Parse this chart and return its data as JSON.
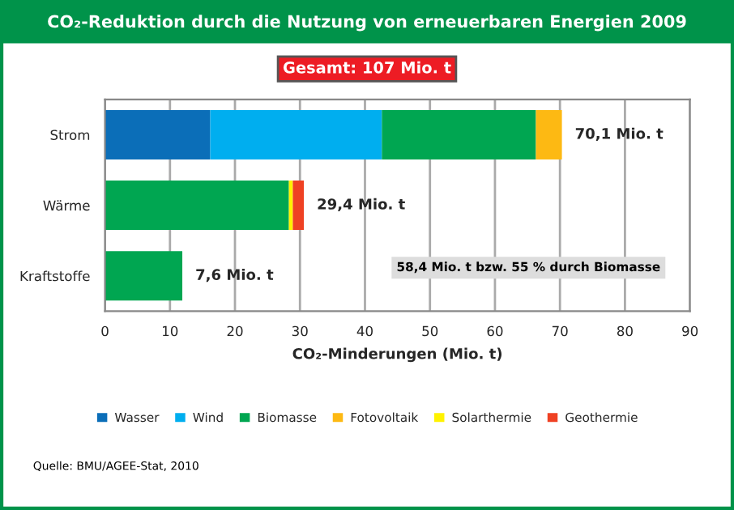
{
  "chart_data": {
    "type": "bar",
    "orientation": "horizontal",
    "stacked": true,
    "title": "CO₂-Reduktion durch die Nutzung von erneuerbaren Energien 2009",
    "xlabel": "CO₂-Minderungen (Mio. t)",
    "categories": [
      "Strom",
      "Wärme",
      "Kraftstoffe"
    ],
    "series": [
      {
        "name": "Wasser",
        "color": "#0b6eb8",
        "values": [
          16.2,
          null,
          null
        ]
      },
      {
        "name": "Wind",
        "color": "#00aeef",
        "values": [
          26.4,
          null,
          null
        ]
      },
      {
        "name": "Biomasse",
        "color": "#00a651",
        "values": [
          23.7,
          28.3,
          11.9
        ]
      },
      {
        "name": "Fotovoltaik",
        "color": "#fdb913",
        "values": [
          4.0,
          null,
          null
        ]
      },
      {
        "name": "Solarthermie",
        "color": "#fff200",
        "values": [
          null,
          0.6,
          null
        ]
      },
      {
        "name": "Geothermie",
        "color": "#ef4123",
        "values": [
          null,
          1.7,
          null
        ]
      }
    ],
    "xlim": [
      0,
      90
    ],
    "xticks": [
      0,
      10,
      20,
      30,
      40,
      50,
      60,
      70,
      80,
      90
    ],
    "grid": "x",
    "legend": "bottom",
    "annotations": [
      "70,1 Mio. t",
      "29,4 Mio. t",
      "7,6 Mio. t",
      "Gesamt: 107 Mio. t",
      "58,4 Mio. t bzw. 55 % durch Biomasse",
      "Quelle: BMU/AGEE-Stat, 2010"
    ]
  }
}
